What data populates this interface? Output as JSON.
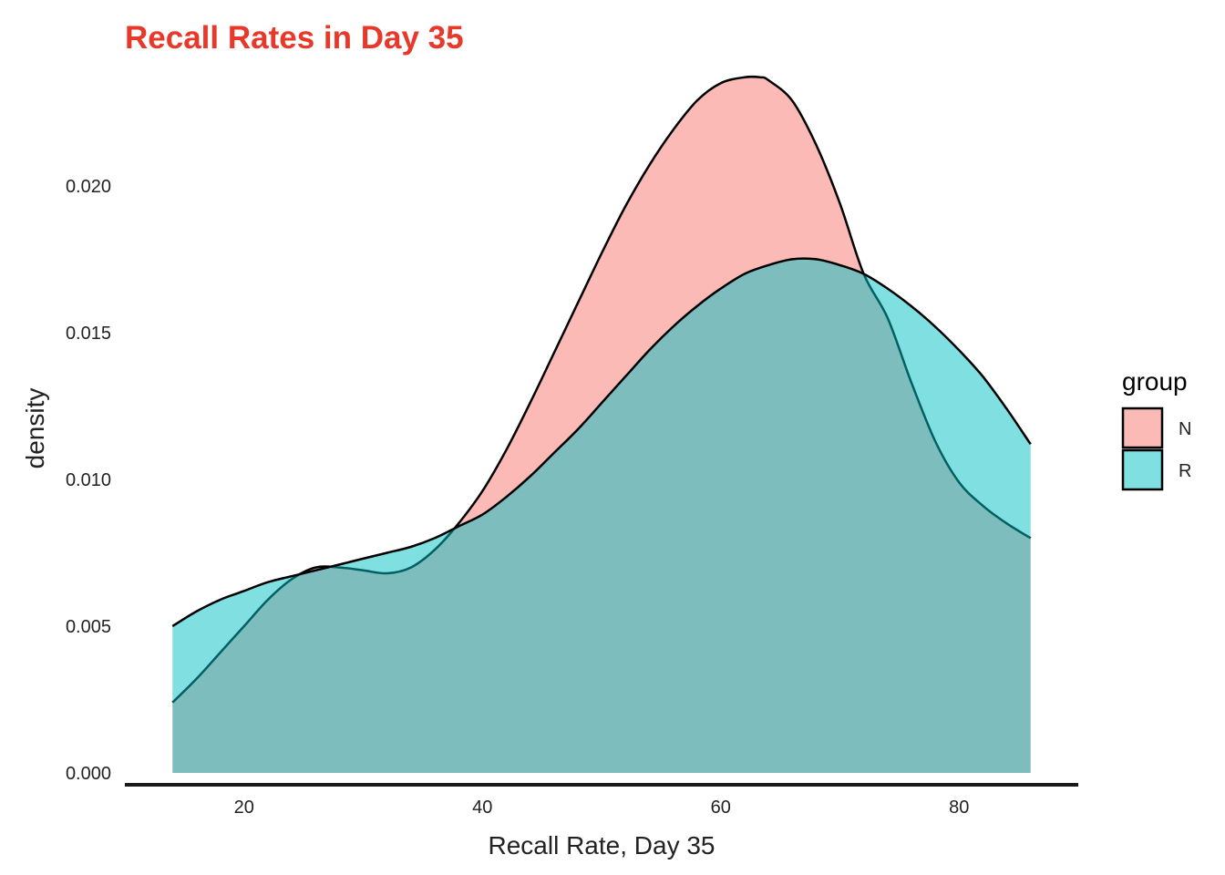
{
  "chart_data": {
    "type": "area",
    "subtype": "density",
    "title": "Recall Rates in Day 35",
    "title_color": "#E8382A",
    "xlabel": "Recall Rate, Day 35",
    "ylabel": "density",
    "xlim": [
      10,
      90
    ],
    "ylim": [
      0,
      0.0245
    ],
    "x_ticks": [
      20,
      40,
      60,
      80
    ],
    "x_tick_labels": [
      "20",
      "40",
      "60",
      "80"
    ],
    "y_ticks": [
      0.0,
      0.005,
      0.01,
      0.015,
      0.02
    ],
    "y_tick_labels": [
      "0.000",
      "0.005",
      "0.010",
      "0.015",
      "0.020"
    ],
    "grid": false,
    "legend": {
      "title": "group",
      "position": "right"
    },
    "series": [
      {
        "name": "N",
        "color": "#F8766D",
        "x": [
          14,
          16,
          18,
          20,
          22,
          24,
          26,
          28,
          30,
          32,
          34,
          36,
          38,
          40,
          42,
          44,
          46,
          48,
          50,
          52,
          54,
          56,
          58,
          60,
          62,
          63.3,
          64,
          66,
          68,
          70,
          72,
          74,
          76,
          78,
          80,
          82,
          84,
          86
        ],
        "y": [
          0.0024,
          0.0032,
          0.0041,
          0.005,
          0.0059,
          0.0066,
          0.007,
          0.007,
          0.0069,
          0.0068,
          0.007,
          0.0076,
          0.0085,
          0.0096,
          0.011,
          0.0126,
          0.0143,
          0.016,
          0.0177,
          0.0193,
          0.0207,
          0.0219,
          0.0229,
          0.0235,
          0.0237,
          0.0237,
          0.0236,
          0.0229,
          0.0214,
          0.0194,
          0.017,
          0.0155,
          0.0133,
          0.0113,
          0.0099,
          0.0091,
          0.0085,
          0.008
        ]
      },
      {
        "name": "R",
        "color": "#00BFC4",
        "x": [
          14,
          16,
          18,
          20,
          22,
          24,
          26,
          28,
          30,
          32,
          34,
          36,
          38,
          40,
          42,
          44,
          46,
          48,
          50,
          52,
          54,
          56,
          58,
          60,
          62,
          64,
          66,
          68,
          70,
          72,
          74,
          76,
          78,
          80,
          82,
          84,
          86
        ],
        "y": [
          0.005,
          0.0055,
          0.0059,
          0.0062,
          0.0065,
          0.0067,
          0.0069,
          0.0071,
          0.0073,
          0.0075,
          0.0077,
          0.008,
          0.0084,
          0.0088,
          0.0094,
          0.0101,
          0.0109,
          0.0117,
          0.0126,
          0.0135,
          0.0144,
          0.0152,
          0.0159,
          0.0165,
          0.017,
          0.0173,
          0.0175,
          0.0175,
          0.0173,
          0.017,
          0.0165,
          0.0159,
          0.0152,
          0.0144,
          0.0135,
          0.0124,
          0.0112
        ]
      }
    ],
    "overlap_color": "#80BCBB"
  }
}
